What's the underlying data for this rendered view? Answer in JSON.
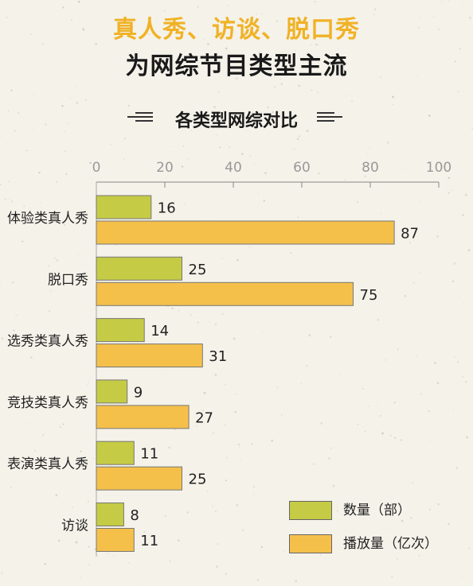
{
  "header": {
    "title_line1": "真人秀、访谈、脱口秀",
    "title_line2": "为网综节目类型主流",
    "chart_heading": "各类型网综对比"
  },
  "colors": {
    "count": "#c5cb44",
    "views": "#f5c04a",
    "title_accent": "#f0b225"
  },
  "chart_data": {
    "type": "bar",
    "orientation": "horizontal",
    "title": "各类型网综对比",
    "categories": [
      "体验类真人秀",
      "脱口秀",
      "选秀类真人秀",
      "竞技类真人秀",
      "表演类真人秀",
      "访谈"
    ],
    "series": [
      {
        "name": "数量（部）",
        "values": [
          16,
          25,
          14,
          9,
          11,
          8
        ],
        "color": "#c5cb44"
      },
      {
        "name": "播放量（亿次）",
        "values": [
          87,
          75,
          31,
          27,
          25,
          11
        ],
        "color": "#f5c04a"
      }
    ],
    "xlim": [
      0,
      100
    ],
    "xticks": [
      0,
      20,
      40,
      60,
      80,
      100
    ],
    "axis_position": "top",
    "legend_position": "bottom-right",
    "grid": false
  }
}
